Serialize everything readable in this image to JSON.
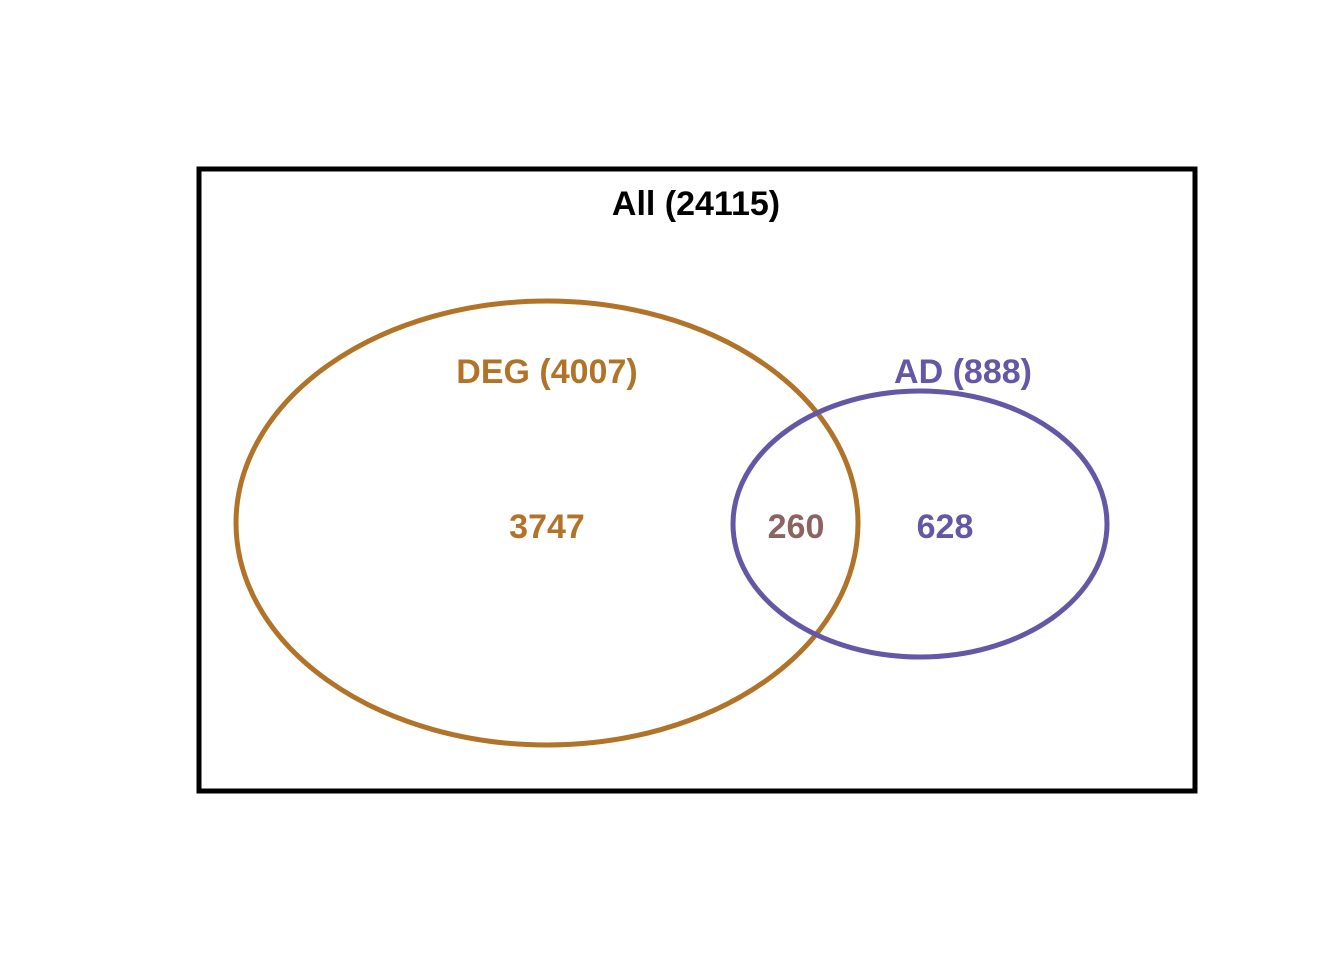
{
  "universe": {
    "label": "All (24115)",
    "color": "#000000"
  },
  "sets": [
    {
      "id": "deg",
      "label": "DEG (4007)",
      "only_count": "3747",
      "color": "#B07328"
    },
    {
      "id": "ad",
      "label": "AD (888)",
      "only_count": "628",
      "color": "#6457A6"
    }
  ],
  "intersection": {
    "count": "260",
    "color": "#8B6461"
  }
}
